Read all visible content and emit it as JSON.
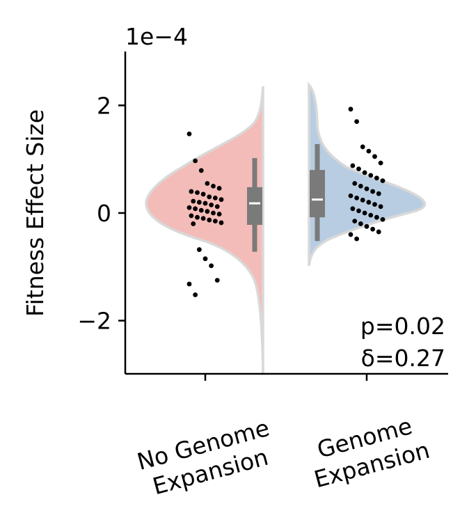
{
  "chart_data": {
    "type": "violin",
    "ylabel": "Fitness Effect Size",
    "y_scale_label": "1e−4",
    "ylim": [
      -3.0,
      3.0
    ],
    "yticks": [
      -2,
      0,
      2
    ],
    "ytick_labels": [
      "−2",
      "0",
      "2"
    ],
    "categories": [
      "No Genome Expansion",
      "Genome Expansion"
    ],
    "category_labels": [
      [
        "No Genome",
        "Expansion"
      ],
      [
        "Genome",
        "Expansion"
      ]
    ],
    "annotation": [
      "p=0.02",
      "δ=0.27"
    ],
    "colors": {
      "left_fill": "#f4bcb8",
      "right_fill": "#b8cde2",
      "outline": "#d9d9d9",
      "box": "#7a7a7a",
      "median": "#ffffff",
      "points": "#000000"
    },
    "groups": [
      {
        "name": "No Genome Expansion",
        "median": 0.18,
        "box": {
          "q1": -0.22,
          "q3": 0.48
        },
        "whiskers": [
          -0.72,
          1.02
        ],
        "violin_range": [
          -3.0,
          2.35
        ],
        "points": [
          [
            1.47,
            0
          ],
          [
            0.97,
            0
          ],
          [
            0.79,
            0
          ],
          [
            0.55,
            0
          ],
          [
            0.5,
            0
          ],
          [
            0.46,
            0
          ],
          [
            0.4,
            0
          ],
          [
            0.38,
            0
          ],
          [
            0.35,
            0
          ],
          [
            0.3,
            0
          ],
          [
            0.28,
            0
          ],
          [
            0.25,
            0
          ],
          [
            0.22,
            0
          ],
          [
            0.2,
            0
          ],
          [
            0.18,
            0
          ],
          [
            0.15,
            0
          ],
          [
            0.12,
            0
          ],
          [
            0.1,
            0
          ],
          [
            0.08,
            0
          ],
          [
            0.05,
            0
          ],
          [
            0.03,
            0
          ],
          [
            0.0,
            0
          ],
          [
            -0.02,
            0
          ],
          [
            -0.05,
            0
          ],
          [
            -0.08,
            0
          ],
          [
            -0.1,
            0
          ],
          [
            -0.13,
            0
          ],
          [
            -0.15,
            0
          ],
          [
            -0.18,
            0
          ],
          [
            -0.2,
            0
          ],
          [
            -0.68,
            0
          ],
          [
            -0.85,
            0
          ],
          [
            -0.98,
            0
          ],
          [
            -1.25,
            0
          ],
          [
            -1.32,
            0
          ],
          [
            -1.52,
            0
          ]
        ]
      },
      {
        "name": "Genome Expansion",
        "median": 0.25,
        "box": {
          "q1": -0.08,
          "q3": 0.8
        },
        "whiskers": [
          -0.52,
          1.28
        ],
        "violin_range": [
          -0.92,
          2.4
        ],
        "points": [
          [
            1.93,
            0
          ],
          [
            1.7,
            0
          ],
          [
            1.23,
            0
          ],
          [
            1.15,
            0
          ],
          [
            1.05,
            0
          ],
          [
            0.93,
            0
          ],
          [
            0.88,
            0
          ],
          [
            0.82,
            0
          ],
          [
            0.75,
            0
          ],
          [
            0.7,
            0
          ],
          [
            0.65,
            0
          ],
          [
            0.6,
            0
          ],
          [
            0.55,
            0
          ],
          [
            0.5,
            0
          ],
          [
            0.45,
            0
          ],
          [
            0.4,
            0
          ],
          [
            0.36,
            0
          ],
          [
            0.32,
            0
          ],
          [
            0.28,
            0
          ],
          [
            0.24,
            0
          ],
          [
            0.2,
            0
          ],
          [
            0.16,
            0
          ],
          [
            0.12,
            0
          ],
          [
            0.08,
            0
          ],
          [
            0.04,
            0
          ],
          [
            0.0,
            0
          ],
          [
            -0.04,
            0
          ],
          [
            -0.08,
            0
          ],
          [
            -0.12,
            0
          ],
          [
            -0.15,
            0
          ],
          [
            -0.2,
            0
          ],
          [
            -0.25,
            0
          ],
          [
            -0.3,
            0
          ],
          [
            -0.35,
            0
          ],
          [
            -0.4,
            0
          ],
          [
            -0.48,
            0
          ]
        ]
      }
    ]
  }
}
